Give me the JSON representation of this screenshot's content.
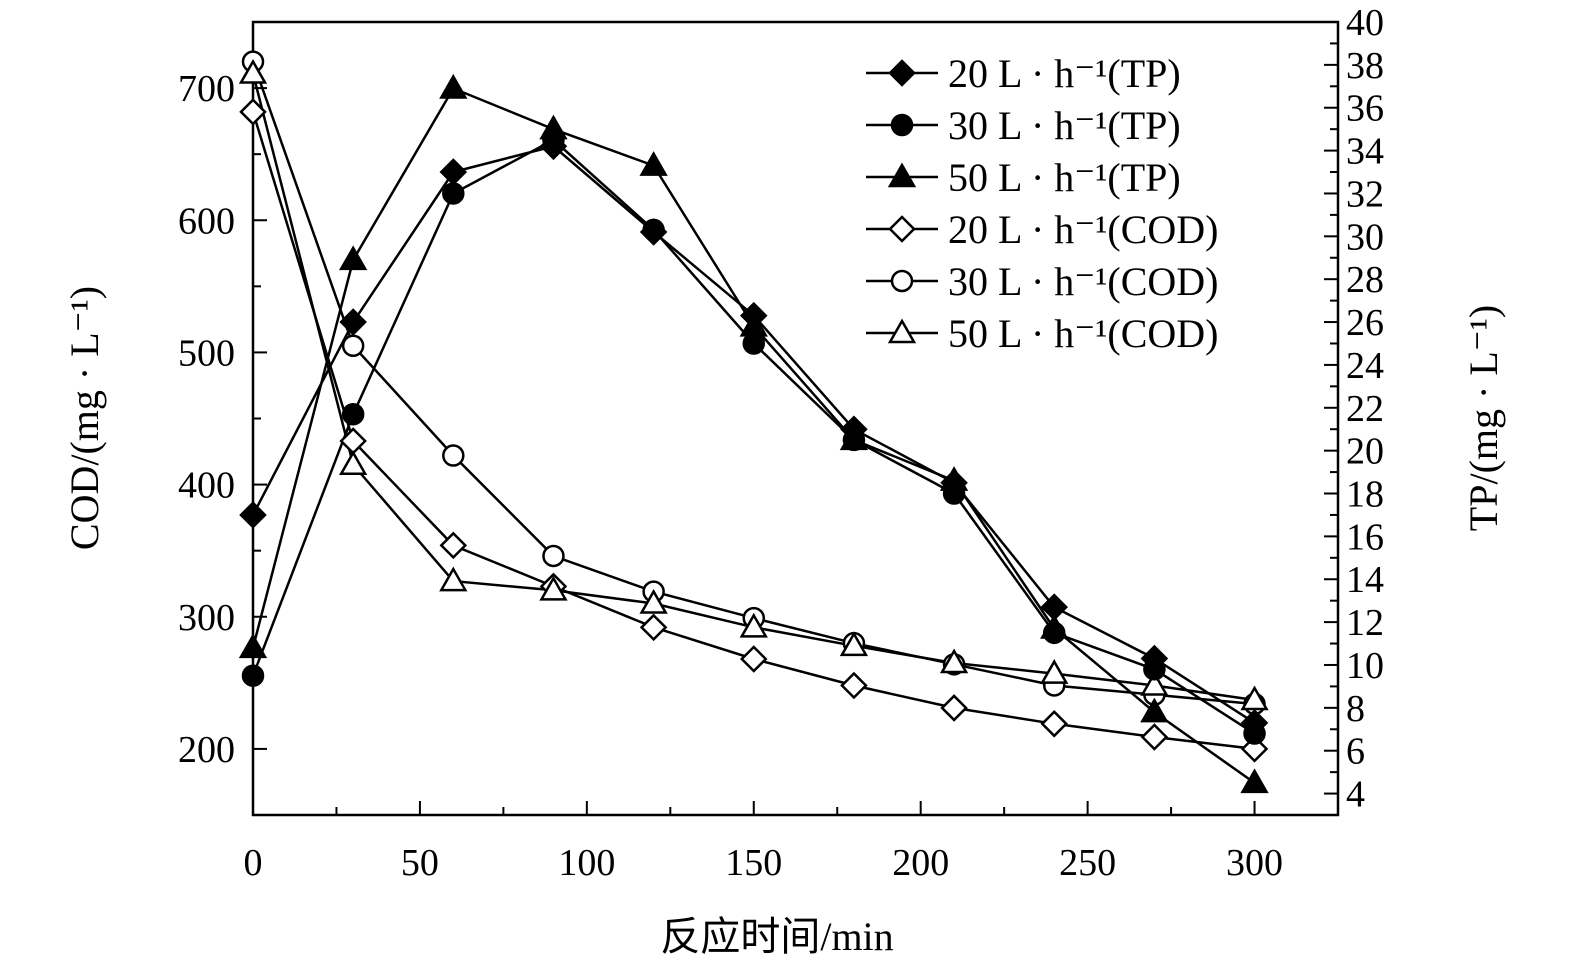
{
  "chart_data": {
    "type": "line",
    "x": [
      0,
      30,
      60,
      90,
      120,
      150,
      180,
      210,
      240,
      270,
      300
    ],
    "xlabel": "反应时间/min",
    "ylabel_left": "COD/(mg · L⁻¹)",
    "ylabel_right": "TP/(mg · L⁻¹)",
    "xlim": [
      0,
      325
    ],
    "ylim_left": [
      150,
      750
    ],
    "ylim_right": [
      3,
      40
    ],
    "x_ticks": [
      0,
      50,
      100,
      150,
      200,
      250,
      300
    ],
    "y_left_ticks": [
      200,
      300,
      400,
      500,
      600,
      700
    ],
    "y_right_ticks": [
      4,
      6,
      8,
      10,
      12,
      14,
      16,
      18,
      20,
      22,
      24,
      26,
      28,
      30,
      32,
      34,
      36,
      38,
      40
    ],
    "grid": false,
    "legend_position": "top-right",
    "series": [
      {
        "name": "20 L · h⁻¹(TP)",
        "axis": "right",
        "marker": "diamond",
        "filled": true,
        "values": [
          17.0,
          26.0,
          33.0,
          34.2,
          30.2,
          26.3,
          21.0,
          18.5,
          12.7,
          10.3,
          7.3
        ]
      },
      {
        "name": "30 L · h⁻¹(TP)",
        "axis": "right",
        "marker": "circle",
        "filled": true,
        "values": [
          9.5,
          21.7,
          32.0,
          34.5,
          30.3,
          25.0,
          20.5,
          18.0,
          11.5,
          9.8,
          6.8
        ]
      },
      {
        "name": "50 L · h⁻¹(TP)",
        "axis": "right",
        "marker": "triangle",
        "filled": true,
        "values": [
          10.8,
          28.9,
          36.9,
          35.0,
          33.3,
          25.8,
          20.5,
          18.6,
          11.7,
          7.8,
          4.5
        ]
      },
      {
        "name": "20 L · h⁻¹(COD)",
        "axis": "left",
        "marker": "diamond",
        "filled": false,
        "values": [
          682,
          433,
          354,
          323,
          292,
          268,
          248,
          231,
          219,
          209,
          200
        ]
      },
      {
        "name": "30 L · h⁻¹(COD)",
        "axis": "left",
        "marker": "circle",
        "filled": false,
        "values": [
          720,
          505,
          422,
          346,
          319,
          299,
          280,
          264,
          248,
          241,
          234
        ]
      },
      {
        "name": "50 L · h⁻¹(COD)",
        "axis": "left",
        "marker": "triangle",
        "filled": false,
        "values": [
          711,
          415,
          327,
          320,
          310,
          292,
          278,
          265,
          257,
          248,
          237
        ]
      }
    ]
  }
}
